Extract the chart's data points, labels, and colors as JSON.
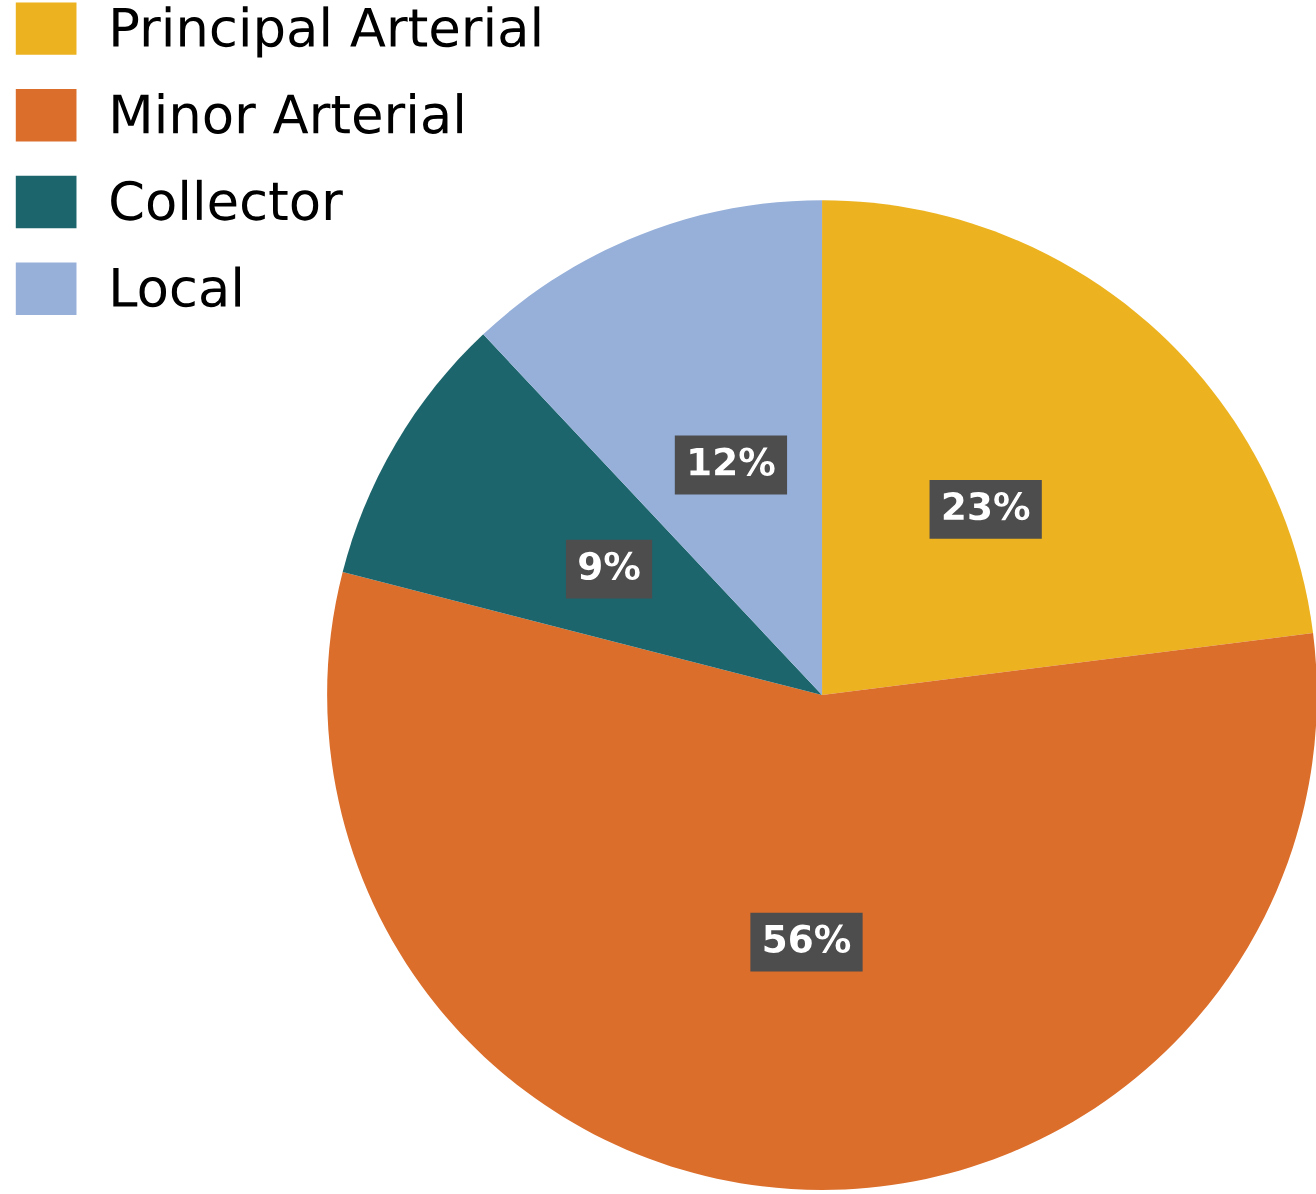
{
  "chart_data": {
    "type": "pie",
    "categories": [
      "Principal Arterial",
      "Minor Arterial",
      "Collector",
      "Local"
    ],
    "values": [
      23,
      56,
      9,
      12
    ],
    "colors": [
      "#ecb21f",
      "#db6e2b",
      "#1d656c",
      "#96b0da"
    ],
    "value_labels": [
      "23%",
      "56%",
      "9%",
      "12%"
    ],
    "legend": "top left"
  }
}
